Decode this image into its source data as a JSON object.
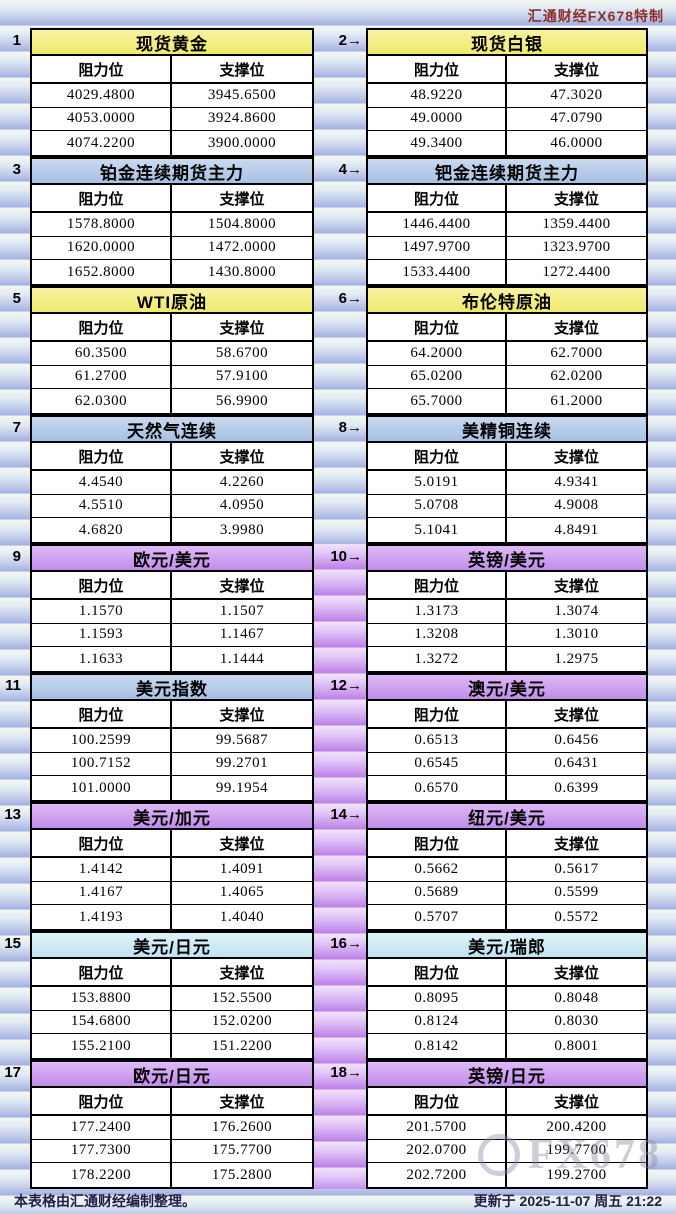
{
  "header": {
    "brand": "汇通财经FX678特制"
  },
  "columns": {
    "resistance": "阻力位",
    "support": "支撑位"
  },
  "sections": [
    {
      "label": "1",
      "title": "现货黄金",
      "theme": "yellow",
      "rows": [
        [
          "4029.4800",
          "3945.6500"
        ],
        [
          "4053.0000",
          "3924.8600"
        ],
        [
          "4074.2200",
          "3900.0000"
        ]
      ]
    },
    {
      "label": "2→",
      "title": "现货白银",
      "theme": "yellow",
      "rows": [
        [
          "48.9220",
          "47.3020"
        ],
        [
          "49.0000",
          "47.0790"
        ],
        [
          "49.3400",
          "46.0000"
        ]
      ]
    },
    {
      "label": "3",
      "title": "铂金连续期货主力",
      "theme": "blue",
      "rows": [
        [
          "1578.8000",
          "1504.8000"
        ],
        [
          "1620.0000",
          "1472.0000"
        ],
        [
          "1652.8000",
          "1430.8000"
        ]
      ]
    },
    {
      "label": "4→",
      "title": "钯金连续期货主力",
      "theme": "blue",
      "rows": [
        [
          "1446.4400",
          "1359.4400"
        ],
        [
          "1497.9700",
          "1323.9700"
        ],
        [
          "1533.4400",
          "1272.4400"
        ]
      ]
    },
    {
      "label": "5",
      "title": "WTI原油",
      "theme": "yellow",
      "rows": [
        [
          "60.3500",
          "58.6700"
        ],
        [
          "61.2700",
          "57.9100"
        ],
        [
          "62.0300",
          "56.9900"
        ]
      ]
    },
    {
      "label": "6→",
      "title": "布伦特原油",
      "theme": "yellow",
      "rows": [
        [
          "64.2000",
          "62.7000"
        ],
        [
          "65.0200",
          "62.0200"
        ],
        [
          "65.7000",
          "61.2000"
        ]
      ]
    },
    {
      "label": "7",
      "title": "天然气连续",
      "theme": "blue",
      "rows": [
        [
          "4.4540",
          "4.2260"
        ],
        [
          "4.5510",
          "4.0950"
        ],
        [
          "4.6820",
          "3.9980"
        ]
      ]
    },
    {
      "label": "8→",
      "title": "美精铜连续",
      "theme": "blue",
      "rows": [
        [
          "5.0191",
          "4.9341"
        ],
        [
          "5.0708",
          "4.9008"
        ],
        [
          "5.1041",
          "4.8491"
        ]
      ]
    },
    {
      "label": "9",
      "title": "欧元/美元",
      "theme": "purple",
      "rows": [
        [
          "1.1570",
          "1.1507"
        ],
        [
          "1.1593",
          "1.1467"
        ],
        [
          "1.1633",
          "1.1444"
        ]
      ]
    },
    {
      "label": "10→",
      "title": "英镑/美元",
      "theme": "purple",
      "rows": [
        [
          "1.3173",
          "1.3074"
        ],
        [
          "1.3208",
          "1.3010"
        ],
        [
          "1.3272",
          "1.2975"
        ]
      ]
    },
    {
      "label": "11",
      "title": "美元指数",
      "theme": "blue",
      "rows": [
        [
          "100.2599",
          "99.5687"
        ],
        [
          "100.7152",
          "99.2701"
        ],
        [
          "101.0000",
          "99.1954"
        ]
      ]
    },
    {
      "label": "12→",
      "title": "澳元/美元",
      "theme": "purple",
      "rows": [
        [
          "0.6513",
          "0.6456"
        ],
        [
          "0.6545",
          "0.6431"
        ],
        [
          "0.6570",
          "0.6399"
        ]
      ]
    },
    {
      "label": "13",
      "title": "美元/加元",
      "theme": "purple",
      "rows": [
        [
          "1.4142",
          "1.4091"
        ],
        [
          "1.4167",
          "1.4065"
        ],
        [
          "1.4193",
          "1.4040"
        ]
      ]
    },
    {
      "label": "14→",
      "title": "纽元/美元",
      "theme": "purple",
      "rows": [
        [
          "0.5662",
          "0.5617"
        ],
        [
          "0.5689",
          "0.5599"
        ],
        [
          "0.5707",
          "0.5572"
        ]
      ]
    },
    {
      "label": "15",
      "title": "美元/日元",
      "theme": "cyan",
      "rows": [
        [
          "153.8800",
          "152.5500"
        ],
        [
          "154.6800",
          "152.0200"
        ],
        [
          "155.2100",
          "151.2200"
        ]
      ]
    },
    {
      "label": "16→",
      "title": "美元/瑞郎",
      "theme": "cyan",
      "rows": [
        [
          "0.8095",
          "0.8048"
        ],
        [
          "0.8124",
          "0.8030"
        ],
        [
          "0.8142",
          "0.8001"
        ]
      ]
    },
    {
      "label": "17",
      "title": "欧元/日元",
      "theme": "purple",
      "rows": [
        [
          "177.2400",
          "176.2600"
        ],
        [
          "177.7300",
          "175.7700"
        ],
        [
          "178.2200",
          "175.2800"
        ]
      ]
    },
    {
      "label": "18→",
      "title": "英镑/日元",
      "theme": "purple",
      "rows": [
        [
          "201.5700",
          "200.4200"
        ],
        [
          "202.0700",
          "199.7700"
        ],
        [
          "202.7200",
          "199.2700"
        ]
      ]
    }
  ],
  "footer": {
    "left": "本表格由汇通财经编制整理。",
    "right": "更新于 2025-11-07 周五 21:22"
  },
  "watermark": "FX678",
  "colors": {
    "header_yellow": "#f3ef7c",
    "header_blue": "#aec6e6",
    "header_purple": "#cc99ee",
    "header_cyan": "#cfeaf2",
    "brand_red": "#8f2f28",
    "mid_strip_purple": "#c48fe8",
    "background_band_blue": "#a3b0e0"
  }
}
